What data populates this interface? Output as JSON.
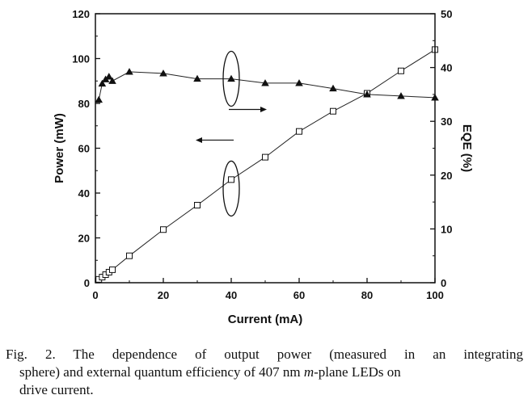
{
  "chart_data": {
    "type": "scatter",
    "xlabel": "Current (mA)",
    "ylabel": "Power (mW)",
    "y2label": "EQE (%)",
    "xlim": [
      0,
      100
    ],
    "ylim": [
      0,
      120
    ],
    "y2lim": [
      0,
      50
    ],
    "xticks": [
      0,
      20,
      40,
      60,
      80,
      100
    ],
    "yticks": [
      0,
      20,
      40,
      60,
      80,
      100,
      120
    ],
    "y2ticks": [
      0,
      10,
      20,
      30,
      40,
      50
    ],
    "grid": false,
    "series": [
      {
        "axis": "left",
        "marker": "open-square",
        "x": [
          1,
          2,
          3,
          4,
          5,
          10,
          20,
          30,
          40,
          50,
          60,
          70,
          80,
          90,
          100
        ],
        "y": [
          1.5,
          2.5,
          3.6,
          4.7,
          5.8,
          12,
          23.7,
          34.6,
          46,
          56,
          67.5,
          76.5,
          84.5,
          94.5,
          104
        ]
      },
      {
        "axis": "right",
        "marker": "filled-triangle",
        "x": [
          1,
          2,
          3,
          4,
          5,
          10,
          20,
          30,
          40,
          50,
          60,
          70,
          80,
          90,
          100
        ],
        "y": [
          34,
          37,
          37.8,
          38.3,
          37.5,
          39.2,
          38.9,
          37.9,
          37.9,
          37.1,
          37.1,
          36.1,
          35,
          34.7,
          34.4
        ]
      }
    ],
    "annotations": [
      {
        "type": "ellipse-arrow",
        "target_axis": "right",
        "ellipse_center": [
          40,
          91
        ],
        "direction": "right"
      },
      {
        "type": "ellipse-arrow",
        "target_axis": "left",
        "ellipse_center": [
          40,
          42
        ],
        "direction": "left"
      }
    ]
  },
  "caption": {
    "line1": "Fig. 2.   The dependence of output power (measured in an integrating",
    "line2": "sphere) and external quantum efficiency of 407 nm ",
    "line2_italic": "m",
    "line2_end": "-plane LEDs on",
    "line3": "drive current."
  }
}
